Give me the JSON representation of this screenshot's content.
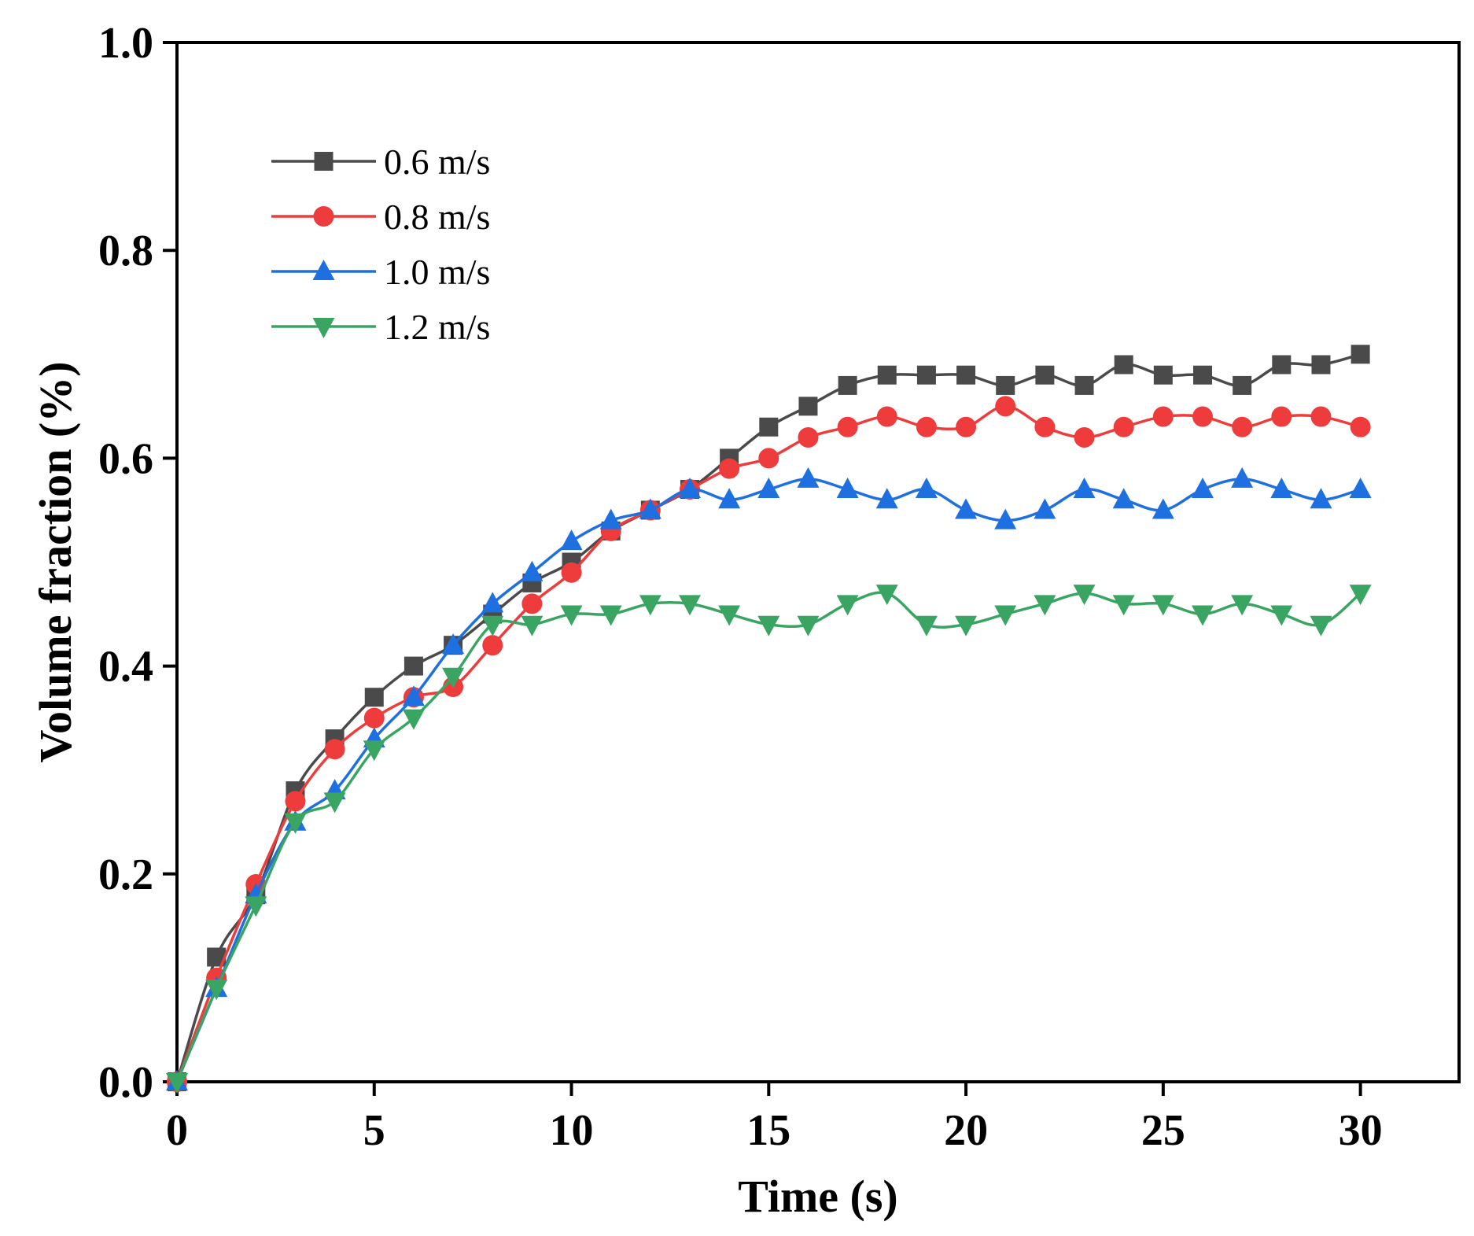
{
  "chart_data": {
    "type": "line",
    "xlabel": "Time (s)",
    "ylabel": "Volume fraction (%)",
    "xlim": [
      0,
      32.5
    ],
    "ylim": [
      0,
      1.0
    ],
    "xticks": [
      0,
      5,
      10,
      15,
      20,
      25,
      30
    ],
    "yticks": [
      0.0,
      0.2,
      0.4,
      0.6,
      0.8,
      1.0
    ],
    "xtick_labels": [
      "0",
      "5",
      "10",
      "15",
      "20",
      "25",
      "30"
    ],
    "ytick_labels": [
      "0.0",
      "0.2",
      "0.4",
      "0.6",
      "0.8",
      "1.0"
    ],
    "grid": false,
    "legend_position": "top-left",
    "x": [
      0,
      1,
      2,
      3,
      4,
      5,
      6,
      7,
      8,
      9,
      10,
      11,
      12,
      13,
      14,
      15,
      16,
      17,
      18,
      19,
      20,
      21,
      22,
      23,
      24,
      25,
      26,
      27,
      28,
      29,
      30
    ],
    "series": [
      {
        "name": "0.6 m/s",
        "color": "#4a4a4a",
        "marker": "square",
        "values": [
          0.0,
          0.12,
          0.18,
          0.28,
          0.33,
          0.37,
          0.4,
          0.42,
          0.45,
          0.48,
          0.5,
          0.53,
          0.55,
          0.57,
          0.6,
          0.63,
          0.65,
          0.67,
          0.68,
          0.68,
          0.68,
          0.67,
          0.68,
          0.67,
          0.69,
          0.68,
          0.68,
          0.67,
          0.69,
          0.69,
          0.7
        ]
      },
      {
        "name": "0.8 m/s",
        "color": "#ee3b3b",
        "marker": "circle",
        "values": [
          0.0,
          0.1,
          0.19,
          0.27,
          0.32,
          0.35,
          0.37,
          0.38,
          0.42,
          0.46,
          0.49,
          0.53,
          0.55,
          0.57,
          0.59,
          0.6,
          0.62,
          0.63,
          0.64,
          0.63,
          0.63,
          0.65,
          0.63,
          0.62,
          0.63,
          0.64,
          0.64,
          0.63,
          0.64,
          0.64,
          0.63
        ]
      },
      {
        "name": "1.0 m/s",
        "color": "#1e6fe0",
        "marker": "triangle-up",
        "values": [
          0.0,
          0.09,
          0.18,
          0.25,
          0.28,
          0.33,
          0.37,
          0.42,
          0.46,
          0.49,
          0.52,
          0.54,
          0.55,
          0.57,
          0.56,
          0.57,
          0.58,
          0.57,
          0.56,
          0.57,
          0.55,
          0.54,
          0.55,
          0.57,
          0.56,
          0.55,
          0.57,
          0.58,
          0.57,
          0.56,
          0.57
        ]
      },
      {
        "name": "1.2 m/s",
        "color": "#3aa563",
        "marker": "triangle-down",
        "values": [
          0.0,
          0.09,
          0.17,
          0.25,
          0.27,
          0.32,
          0.35,
          0.39,
          0.44,
          0.44,
          0.45,
          0.45,
          0.46,
          0.46,
          0.45,
          0.44,
          0.44,
          0.46,
          0.47,
          0.44,
          0.44,
          0.45,
          0.46,
          0.47,
          0.46,
          0.46,
          0.45,
          0.46,
          0.45,
          0.44,
          0.47
        ]
      }
    ]
  }
}
